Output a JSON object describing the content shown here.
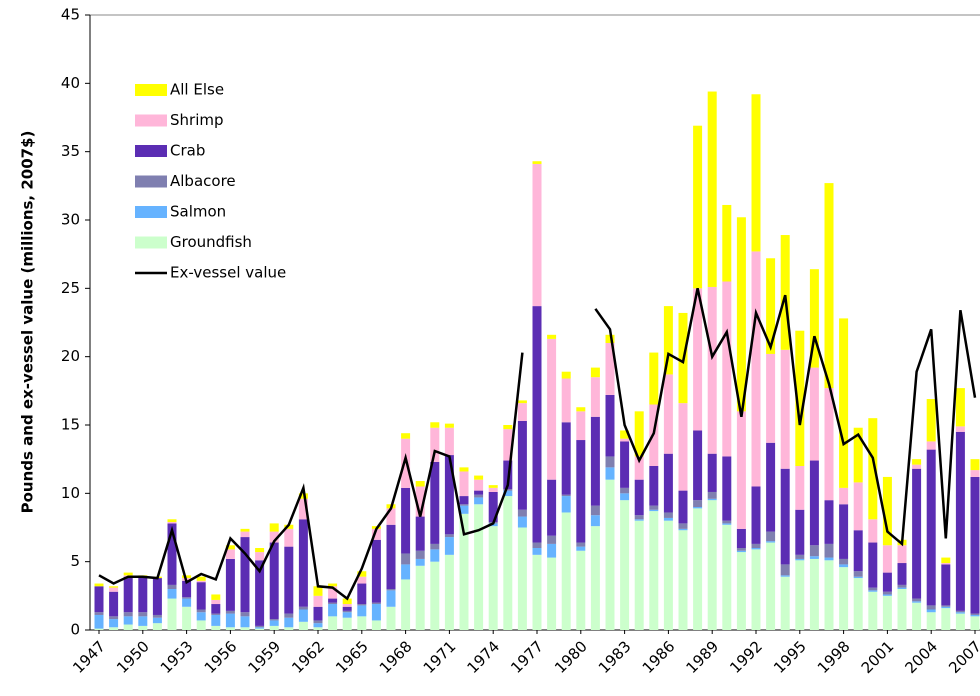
{
  "chart_data": {
    "type": "stacked-bar-line",
    "y_label": "Pounds and ex-vessel value (millions, 2007$)",
    "categories": [
      "1947",
      null,
      null,
      "1950",
      null,
      null,
      "1953",
      null,
      null,
      "1956",
      null,
      null,
      "1959",
      null,
      null,
      "1962",
      null,
      null,
      "1965",
      null,
      null,
      "1968",
      null,
      null,
      "1971",
      null,
      null,
      "1974",
      null,
      null,
      "1977",
      null,
      null,
      "1980",
      null,
      null,
      "1983",
      null,
      null,
      "1986",
      null,
      null,
      "1989",
      null,
      null,
      "1992",
      null,
      null,
      "1995",
      null,
      null,
      "1998",
      null,
      null,
      "2001",
      null,
      null,
      "2004",
      null,
      null,
      "2007"
    ],
    "ylim": [
      0,
      45
    ],
    "yticks": [
      0,
      5,
      10,
      15,
      20,
      25,
      30,
      35,
      40,
      45
    ],
    "legend": "upper-left",
    "series": [
      {
        "name": "Groundfish",
        "color": "#ccffcc",
        "values": [
          0.1,
          0.2,
          0.4,
          0.3,
          0.5,
          2.3,
          1.7,
          0.7,
          0.3,
          0.2,
          0.2,
          0.1,
          0.3,
          0.2,
          0.6,
          0.2,
          1.0,
          0.9,
          1.0,
          0.7,
          1.7,
          3.7,
          4.7,
          5.0,
          5.5,
          8.5,
          9.2,
          7.6,
          9.8,
          7.5,
          5.5,
          5.3,
          8.6,
          5.8,
          7.6,
          11.0,
          9.5,
          8.0,
          8.7,
          8.0,
          7.3,
          8.9,
          9.5,
          7.7,
          5.7,
          5.9,
          6.4,
          3.9,
          5.1,
          5.2,
          5.1,
          4.6,
          3.8,
          2.8,
          2.5,
          3.0,
          2.0,
          1.3,
          1.6,
          1.2,
          1.0
        ]
      },
      {
        "name": "Salmon",
        "color": "#66b3ff",
        "values": [
          1.0,
          0.6,
          0.6,
          0.7,
          0.4,
          0.7,
          0.6,
          0.6,
          0.8,
          1.0,
          0.8,
          0.1,
          0.4,
          0.7,
          0.9,
          0.3,
          0.9,
          0.4,
          0.8,
          1.2,
          1.2,
          1.1,
          0.5,
          0.9,
          1.3,
          0.6,
          0.5,
          0.2,
          0.4,
          0.8,
          0.5,
          1.0,
          1.2,
          0.3,
          0.8,
          0.9,
          0.5,
          0.1,
          0.1,
          0.2,
          0.1,
          0.1,
          0.1,
          0.1,
          0.1,
          0.1,
          0.1,
          0.1,
          0.1,
          0.2,
          0.2,
          0.2,
          0.1,
          0.1,
          0.1,
          0.1,
          0.1,
          0.2,
          0.1,
          0.1,
          0.1
        ]
      },
      {
        "name": "Albacore",
        "color": "#7f7fb0",
        "values": [
          0.2,
          0.2,
          0.3,
          0.3,
          0.2,
          0.3,
          0.1,
          0.2,
          0.1,
          0.2,
          0.3,
          0.1,
          0.1,
          0.3,
          0.2,
          0.2,
          0.1,
          0.1,
          0.1,
          0.1,
          0.1,
          0.8,
          0.6,
          0.4,
          0.2,
          0.1,
          0.2,
          0.1,
          0.1,
          0.5,
          0.4,
          0.6,
          0.1,
          0.3,
          0.7,
          0.8,
          0.4,
          0.3,
          0.3,
          0.4,
          0.4,
          0.5,
          0.5,
          0.2,
          0.2,
          0.3,
          0.7,
          0.8,
          0.3,
          0.8,
          1.0,
          0.4,
          0.4,
          0.2,
          0.2,
          0.2,
          0.2,
          0.3,
          0.1,
          0.1,
          0.1
        ]
      },
      {
        "name": "Crab",
        "color": "#5b2db3",
        "values": [
          1.9,
          1.8,
          2.6,
          2.6,
          2.7,
          4.5,
          1.2,
          2.0,
          0.7,
          3.8,
          5.5,
          4.8,
          5.6,
          4.9,
          6.4,
          1.0,
          0.3,
          0.3,
          1.5,
          4.6,
          4.7,
          4.8,
          2.5,
          6.0,
          5.8,
          0.6,
          0.3,
          2.2,
          2.1,
          6.5,
          17.3,
          4.1,
          5.3,
          7.5,
          6.5,
          4.5,
          3.4,
          2.6,
          2.9,
          4.3,
          2.4,
          5.1,
          2.8,
          4.7,
          1.4,
          4.2,
          6.5,
          7.0,
          3.3,
          6.2,
          3.2,
          4.0,
          3.0,
          3.3,
          1.4,
          1.6,
          9.5,
          11.4,
          3.0,
          13.1,
          10.0
        ]
      },
      {
        "name": "Shrimp",
        "color": "#ffb6d9",
        "values": [
          0,
          0.3,
          0.1,
          0,
          0,
          0.1,
          0.2,
          0.1,
          0.3,
          0.7,
          0.4,
          0.6,
          0.8,
          1.3,
          1.5,
          0.8,
          0.9,
          0.2,
          0.5,
          0.8,
          1.2,
          3.6,
          2.2,
          2.5,
          2.0,
          1.8,
          0.8,
          0.3,
          2.3,
          1.3,
          10.4,
          10.3,
          3.2,
          2.1,
          2.9,
          3.8,
          0.2,
          1.7,
          4.5,
          5.8,
          6.4,
          10.4,
          12.2,
          12.8,
          8.6,
          17.2,
          6.5,
          8.7,
          3.2,
          6.8,
          8.2,
          1.2,
          3.5,
          1.7,
          2.0,
          1.3,
          0.3,
          0.6,
          0.1,
          0.4,
          0.5
        ]
      },
      {
        "name": "All Else",
        "color": "#ffff00",
        "values": [
          0.2,
          0.1,
          0.2,
          0.1,
          0.1,
          0.2,
          0.2,
          0.3,
          0.4,
          0.3,
          0.2,
          0.3,
          0.6,
          0.3,
          0.4,
          0.7,
          0.2,
          0.4,
          0.4,
          0.2,
          0.3,
          0.4,
          0.4,
          0.4,
          0.3,
          0.3,
          0.3,
          0.2,
          0.3,
          0.2,
          0.2,
          0.3,
          0.5,
          0.3,
          0.7,
          0.6,
          0.6,
          3.3,
          3.8,
          5.0,
          6.6,
          11.9,
          14.3,
          5.6,
          14.2,
          11.5,
          7.0,
          8.4,
          9.9,
          7.2,
          15.0,
          12.4,
          4.0,
          7.4,
          5.0,
          0.4,
          0.4,
          3.1,
          0.4,
          2.8,
          0.8
        ]
      }
    ],
    "line": {
      "name": "Ex-vessel value",
      "color": "#000000",
      "values": [
        4.0,
        3.4,
        3.9,
        3.9,
        3.8,
        7.3,
        3.5,
        4.1,
        3.7,
        6.7,
        5.6,
        4.3,
        6.5,
        7.7,
        10.4,
        3.2,
        3.1,
        2.3,
        4.5,
        7.4,
        8.9,
        12.6,
        8.3,
        13.1,
        12.7,
        7.0,
        7.3,
        7.8,
        10.6,
        20.3,
        null,
        null,
        null,
        null,
        23.5,
        22.0,
        15.0,
        12.4,
        14.4,
        20.2,
        19.6,
        25.0,
        20.0,
        21.8,
        15.6,
        23.2,
        20.7,
        24.5,
        15.0,
        21.5,
        18.0,
        13.6,
        14.3,
        12.6,
        7.2,
        6.3,
        18.9,
        22.0,
        6.7,
        23.4,
        17.0
      ]
    }
  }
}
